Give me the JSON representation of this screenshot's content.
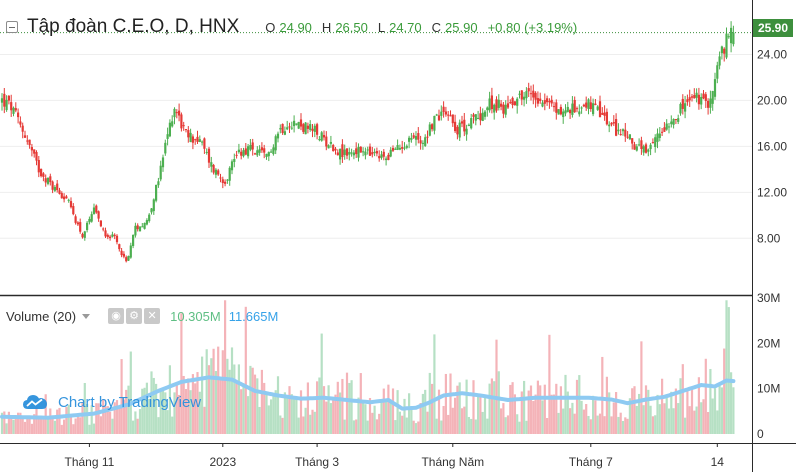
{
  "legend": {
    "symbol_title": "Tập đoàn C.E.O, D, HNX",
    "open_key": "O",
    "open": "24.90",
    "high_key": "H",
    "high": "26.50",
    "low_key": "L",
    "low": "24.70",
    "close_key": "C",
    "close": "25.90",
    "change": "+0.80 (+3.19%)"
  },
  "last_price_label": "25.90",
  "volume_legend": {
    "name": "Volume (20)",
    "value": "10.305M",
    "ma_value": "11.665M",
    "buttons": [
      "eye-icon",
      "settings-icon",
      "close-icon"
    ]
  },
  "watermark": "Chart by TradingView",
  "colors": {
    "up": "#4caf50",
    "down": "#e53935",
    "vol_up": "#b6e0c4",
    "vol_down": "#f4b3b8",
    "ma_line": "#8ecaf2",
    "price_label_bg": "#3d8f3d"
  },
  "chart_data": {
    "type": "candlestick",
    "interval": "D",
    "price_axis": {
      "ticks": [
        8.0,
        12.0,
        16.0,
        20.0,
        24.0
      ],
      "tick_labels": [
        "8.00",
        "12.00",
        "16.00",
        "20.00",
        "24.00"
      ],
      "range": [
        3.5,
        27.0
      ]
    },
    "volume_axis": {
      "ticks": [
        0,
        10,
        20,
        30
      ],
      "tick_labels": [
        "0",
        "10M",
        "20M",
        "30M"
      ],
      "unit": "M"
    },
    "time_axis_labels": [
      "Tháng 11",
      "2023",
      "Tháng 3",
      "Tháng Năm",
      "Tháng 7",
      "14"
    ],
    "time_axis_label_bars": [
      38,
      96,
      137,
      196,
      256,
      311
    ],
    "bar_count": 319,
    "close_anchors": [
      [
        0,
        20.0
      ],
      [
        4,
        19.4
      ],
      [
        10,
        17.0
      ],
      [
        16,
        14.0
      ],
      [
        22,
        12.5
      ],
      [
        28,
        11.5
      ],
      [
        35,
        8.2
      ],
      [
        40,
        10.4
      ],
      [
        45,
        8.4
      ],
      [
        49,
        8.0
      ],
      [
        54,
        5.9
      ],
      [
        58,
        8.9
      ],
      [
        63,
        9.5
      ],
      [
        68,
        13.0
      ],
      [
        72,
        17.0
      ],
      [
        75,
        19.5
      ],
      [
        80,
        17.0
      ],
      [
        86,
        16.5
      ],
      [
        92,
        14.0
      ],
      [
        97,
        13.0
      ],
      [
        102,
        15.5
      ],
      [
        108,
        15.8
      ],
      [
        115,
        15.0
      ],
      [
        120,
        17.3
      ],
      [
        125,
        18.2
      ],
      [
        130,
        17.8
      ],
      [
        136,
        17.3
      ],
      [
        142,
        16.3
      ],
      [
        148,
        15.3
      ],
      [
        154,
        15.6
      ],
      [
        160,
        15.3
      ],
      [
        166,
        15.0
      ],
      [
        172,
        15.8
      ],
      [
        178,
        16.8
      ],
      [
        183,
        16.5
      ],
      [
        188,
        18.3
      ],
      [
        193,
        19.3
      ],
      [
        198,
        17.5
      ],
      [
        203,
        18.0
      ],
      [
        208,
        18.8
      ],
      [
        213,
        19.8
      ],
      [
        218,
        19.3
      ],
      [
        224,
        20.3
      ],
      [
        230,
        20.6
      ],
      [
        236,
        20.0
      ],
      [
        242,
        19.0
      ],
      [
        248,
        19.2
      ],
      [
        254,
        19.8
      ],
      [
        260,
        18.8
      ],
      [
        266,
        17.5
      ],
      [
        270,
        17.2
      ],
      [
        276,
        16.0
      ],
      [
        281,
        15.3
      ],
      [
        285,
        17.0
      ],
      [
        289,
        18.0
      ],
      [
        293,
        18.8
      ],
      [
        298,
        19.8
      ],
      [
        302,
        20.3
      ],
      [
        306,
        19.5
      ],
      [
        309,
        20.8
      ],
      [
        311,
        22.8
      ],
      [
        313,
        24.2
      ],
      [
        315,
        25.1
      ],
      [
        318,
        25.9
      ]
    ],
    "volume_ma_anchors": [
      [
        0,
        3.8
      ],
      [
        20,
        3.6
      ],
      [
        40,
        4.5
      ],
      [
        55,
        6.5
      ],
      [
        68,
        9.5
      ],
      [
        78,
        11.5
      ],
      [
        90,
        12.5
      ],
      [
        100,
        12.0
      ],
      [
        110,
        9.5
      ],
      [
        120,
        8.5
      ],
      [
        130,
        7.8
      ],
      [
        140,
        8.0
      ],
      [
        150,
        7.5
      ],
      [
        160,
        7.0
      ],
      [
        168,
        7.5
      ],
      [
        174,
        5.6
      ],
      [
        180,
        5.8
      ],
      [
        186,
        7.0
      ],
      [
        192,
        8.5
      ],
      [
        200,
        9.0
      ],
      [
        208,
        8.5
      ],
      [
        220,
        7.5
      ],
      [
        232,
        8.0
      ],
      [
        245,
        8.0
      ],
      [
        255,
        8.0
      ],
      [
        265,
        7.6
      ],
      [
        272,
        6.8
      ],
      [
        280,
        7.6
      ],
      [
        288,
        8.2
      ],
      [
        296,
        9.5
      ],
      [
        304,
        10.8
      ],
      [
        310,
        10.5
      ],
      [
        315,
        11.8
      ],
      [
        318,
        11.665
      ]
    ],
    "last_bar": {
      "open": 24.9,
      "high": 26.5,
      "low": 24.7,
      "close": 25.9,
      "volume_m": 10.305,
      "volume_ma_m": 11.665
    }
  }
}
